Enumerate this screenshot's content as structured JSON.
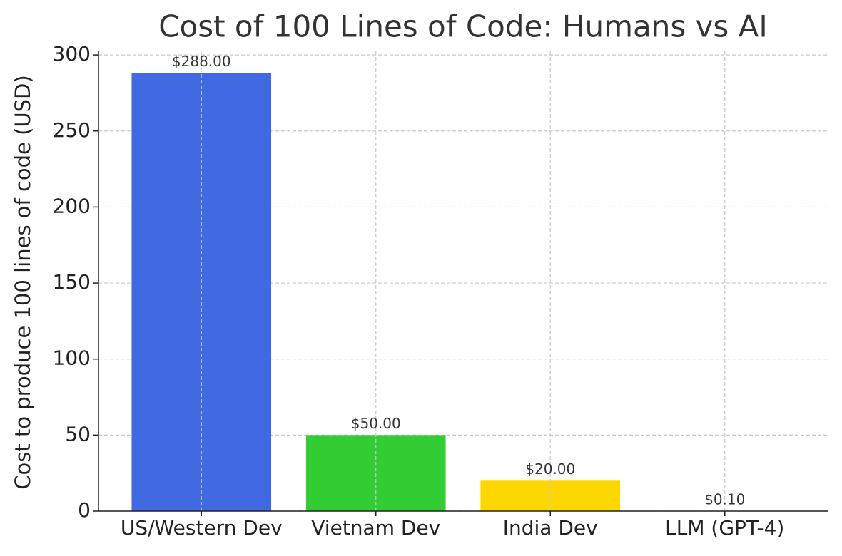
{
  "chart_data": {
    "type": "bar",
    "title": "Cost of 100 Lines of Code: Humans vs AI",
    "y_label": "Cost to produce 100 lines of code (USD)",
    "categories": [
      "US/Western Dev",
      "Vietnam Dev",
      "India Dev",
      "LLM (GPT-4)"
    ],
    "values": [
      288,
      50,
      20,
      0.1
    ],
    "value_labels": [
      "$288.00",
      "$50.00",
      "$20.00",
      "$0.10"
    ],
    "colors": [
      "#4169e1",
      "#32cd32",
      "#ffd700",
      "#8a2be2"
    ],
    "ylim": [
      0,
      302.4
    ],
    "yticks": [
      0,
      50,
      100,
      150,
      200,
      250,
      300
    ],
    "grid": true
  }
}
